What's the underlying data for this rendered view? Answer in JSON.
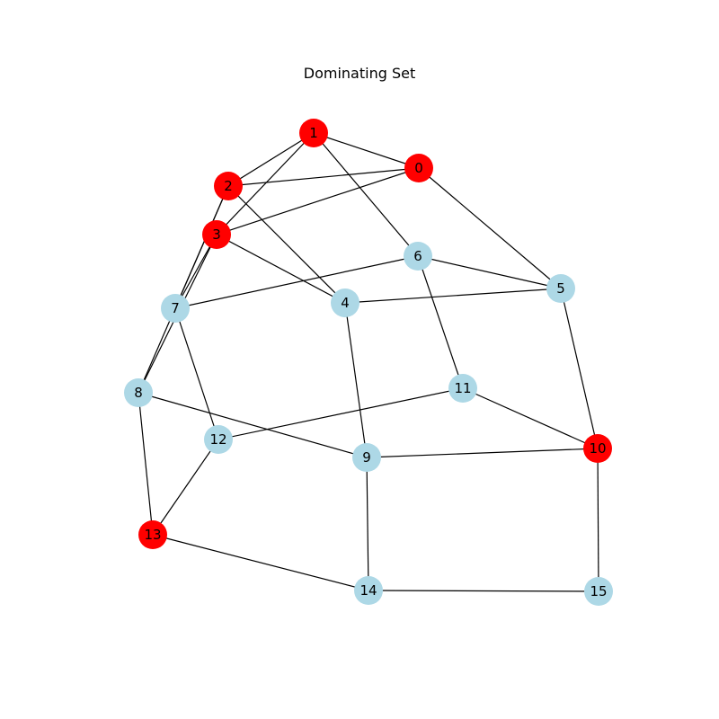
{
  "title": "Dominating Set",
  "colors": {
    "dominating": "#ff0000",
    "other": "#add8e6",
    "edge": "#000000"
  },
  "nodes": [
    {
      "id": "0",
      "dominating": true
    },
    {
      "id": "1",
      "dominating": true
    },
    {
      "id": "2",
      "dominating": true
    },
    {
      "id": "3",
      "dominating": true
    },
    {
      "id": "4",
      "dominating": false
    },
    {
      "id": "5",
      "dominating": false
    },
    {
      "id": "6",
      "dominating": false
    },
    {
      "id": "7",
      "dominating": false
    },
    {
      "id": "8",
      "dominating": false
    },
    {
      "id": "9",
      "dominating": false
    },
    {
      "id": "10",
      "dominating": true
    },
    {
      "id": "11",
      "dominating": false
    },
    {
      "id": "12",
      "dominating": false
    },
    {
      "id": "13",
      "dominating": true
    },
    {
      "id": "14",
      "dominating": false
    },
    {
      "id": "15",
      "dominating": false
    }
  ],
  "edges": [
    [
      "1",
      "0"
    ],
    [
      "1",
      "2"
    ],
    [
      "1",
      "3"
    ],
    [
      "1",
      "6"
    ],
    [
      "0",
      "2"
    ],
    [
      "0",
      "3"
    ],
    [
      "0",
      "5"
    ],
    [
      "2",
      "4"
    ],
    [
      "2",
      "7"
    ],
    [
      "2",
      "8"
    ],
    [
      "3",
      "4"
    ],
    [
      "3",
      "7"
    ],
    [
      "3",
      "8"
    ],
    [
      "6",
      "5"
    ],
    [
      "6",
      "7"
    ],
    [
      "6",
      "11"
    ],
    [
      "4",
      "5"
    ],
    [
      "4",
      "9"
    ],
    [
      "5",
      "10"
    ],
    [
      "7",
      "12"
    ],
    [
      "8",
      "9"
    ],
    [
      "8",
      "13"
    ],
    [
      "11",
      "12"
    ],
    [
      "11",
      "10"
    ],
    [
      "9",
      "10"
    ],
    [
      "9",
      "14"
    ],
    [
      "12",
      "13"
    ],
    [
      "13",
      "14"
    ],
    [
      "14",
      "15"
    ],
    [
      "10",
      "15"
    ]
  ]
}
